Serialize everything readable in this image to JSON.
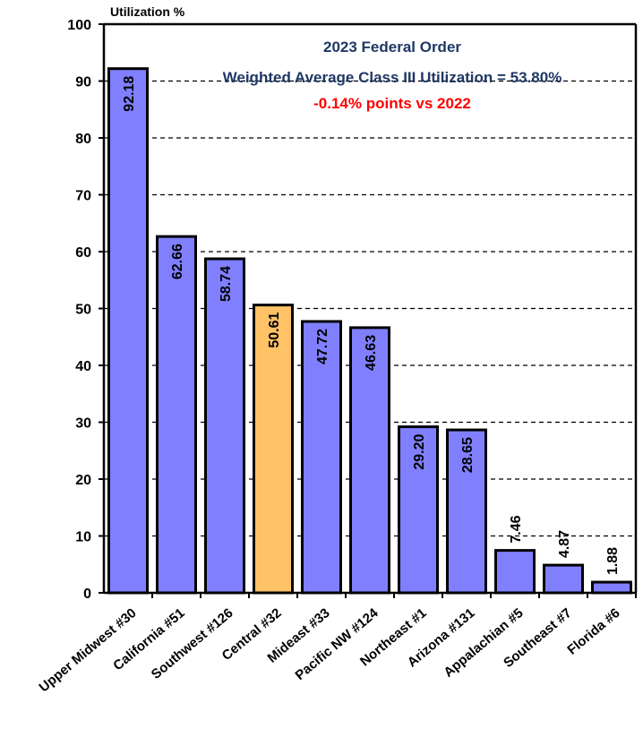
{
  "chart_data": {
    "type": "bar",
    "title": "2023 Federal Order",
    "subtitle": "Weighted Average Class III Utilization = 53.80%",
    "note": "-0.14% points vs 2022",
    "ylabel": "Utilization %",
    "xlabel": "",
    "ylim": [
      0,
      100
    ],
    "yticks": [
      0,
      10,
      20,
      30,
      40,
      50,
      60,
      70,
      80,
      90,
      100
    ],
    "grid": true,
    "categories": [
      "Upper Midwest #30",
      "California #51",
      "Southwest #126",
      "Central #32",
      "Mideast #33",
      "Pacific NW #124",
      "Northeast #1",
      "Arizona #131",
      "Appalachian #5",
      "Southeast #7",
      "Florida #6"
    ],
    "values": [
      92.18,
      62.66,
      58.74,
      50.61,
      47.72,
      46.63,
      29.2,
      28.65,
      7.46,
      4.87,
      1.88
    ],
    "value_labels": [
      "92.18",
      "62.66",
      "58.74",
      "50.61",
      "47.72",
      "46.63",
      "29.20",
      "28.65",
      "7.46",
      "4.87",
      "1.88"
    ],
    "highlight_index": 3
  },
  "colors": {
    "bar": "#8080ff",
    "highlight": "#ffc266",
    "title": "#1f3864",
    "note": "#ff0000",
    "grid": "#000000"
  }
}
